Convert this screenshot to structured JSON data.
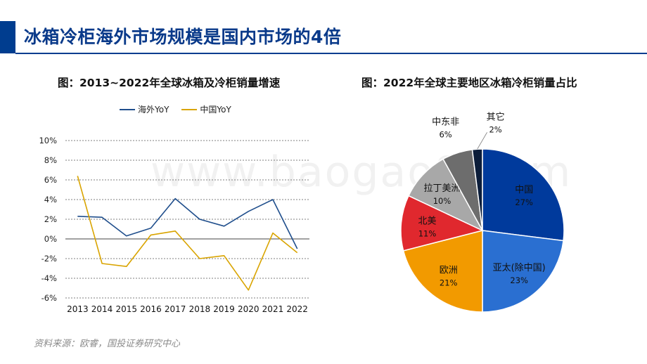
{
  "page": {
    "title": "冰箱冷柜海外市场规模是国内市场的4倍",
    "source": "资料来源：欧睿，国投证券研究中心",
    "watermark": "www.baogao8.com"
  },
  "chart_data": [
    {
      "type": "line",
      "title": "图：2013~2022年全球冰箱及冷柜销量增速",
      "x": [
        "2013",
        "2014",
        "2015",
        "2016",
        "2017",
        "2018",
        "2019",
        "2020",
        "2021",
        "2022"
      ],
      "series": [
        {
          "name": "海外YoY",
          "color": "#1f4e8c",
          "values": [
            2.3,
            2.2,
            0.3,
            1.1,
            4.1,
            2.0,
            1.3,
            2.8,
            4.0,
            -1.0
          ]
        },
        {
          "name": "中国YoY",
          "color": "#d9a400",
          "values": [
            6.4,
            -2.5,
            -2.8,
            0.4,
            0.8,
            -2.0,
            -1.7,
            -5.2,
            0.6,
            -1.4
          ]
        }
      ],
      "yticks": [
        "10%",
        "8%",
        "6%",
        "4%",
        "2%",
        "0%",
        "-2%",
        "-4%",
        "-6%"
      ],
      "ylim": [
        -6,
        10
      ],
      "grid": true,
      "legend": "top"
    },
    {
      "type": "pie",
      "title": "图：2022年全球主要地区冰箱冷柜销量占比",
      "slices": [
        {
          "label": "中国",
          "value": 27,
          "value_label": "27%",
          "color": "#003a9c"
        },
        {
          "label": "亚太(除中国)",
          "value": 23,
          "value_label": "23%",
          "color": "#2a6fd1"
        },
        {
          "label": "欧洲",
          "value": 21,
          "value_label": "21%",
          "color": "#f29a00"
        },
        {
          "label": "北美",
          "value": 11,
          "value_label": "11%",
          "color": "#e0282e"
        },
        {
          "label": "拉丁美洲",
          "value": 10,
          "value_label": "10%",
          "color": "#a8a8a8"
        },
        {
          "label": "中东非",
          "value": 6,
          "value_label": "6%",
          "color": "#6d6d6d"
        },
        {
          "label": "其它",
          "value": 2,
          "value_label": "2%",
          "color": "#0b1d3a"
        }
      ]
    }
  ]
}
